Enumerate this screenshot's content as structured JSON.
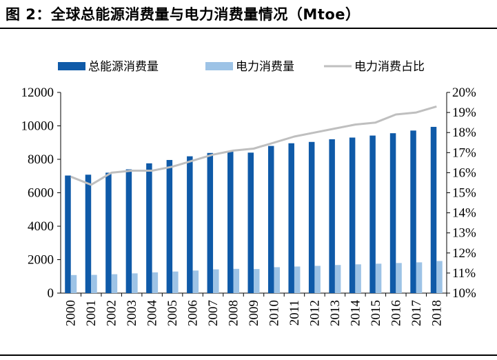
{
  "figure_title": "图 2：全球总能源消费量与电力消费量情况（Mtoe）",
  "colors": {
    "total": "#0f5aa8",
    "electricity": "#9dc3e6",
    "share": "#bfbfbf"
  },
  "chart_data": {
    "type": "bar",
    "title": "图 2：全球总能源消费量与电力消费量情况（Mtoe）",
    "categories": [
      "2000",
      "2001",
      "2002",
      "2003",
      "2004",
      "2005",
      "2006",
      "2007",
      "2008",
      "2009",
      "2010",
      "2011",
      "2012",
      "2013",
      "2014",
      "2015",
      "2016",
      "2017",
      "2018"
    ],
    "series": [
      {
        "name": "总能源消费量",
        "type": "bar",
        "axis": "left",
        "values": [
          7030,
          7080,
          7200,
          7400,
          7760,
          7960,
          8180,
          8380,
          8480,
          8400,
          8800,
          8960,
          9040,
          9200,
          9300,
          9420,
          9560,
          9720,
          9940
        ]
      },
      {
        "name": "电力消费量",
        "type": "bar",
        "axis": "left",
        "values": [
          1080,
          1090,
          1130,
          1180,
          1240,
          1290,
          1350,
          1420,
          1450,
          1440,
          1550,
          1590,
          1630,
          1680,
          1720,
          1760,
          1800,
          1840,
          1920
        ]
      },
      {
        "name": "电力消费占比",
        "type": "line",
        "axis": "right",
        "values": [
          15.8,
          15.4,
          16.0,
          16.1,
          16.1,
          16.3,
          16.6,
          16.9,
          17.1,
          17.2,
          17.5,
          17.8,
          18.0,
          18.2,
          18.4,
          18.5,
          18.9,
          19.0,
          19.3
        ]
      }
    ],
    "y_left": {
      "ylim": [
        0,
        12000
      ],
      "ticks": [
        "0",
        "2000",
        "4000",
        "6000",
        "8000",
        "10000",
        "12000"
      ]
    },
    "y_right": {
      "ylim": [
        10,
        20
      ],
      "ticks": [
        "10%",
        "11%",
        "12%",
        "13%",
        "14%",
        "15%",
        "16%",
        "17%",
        "18%",
        "19%",
        "20%"
      ]
    },
    "legend": {
      "placement": "top",
      "entries": [
        "总能源消费量",
        "电力消费量",
        "电力消费占比"
      ]
    },
    "grid": false
  }
}
